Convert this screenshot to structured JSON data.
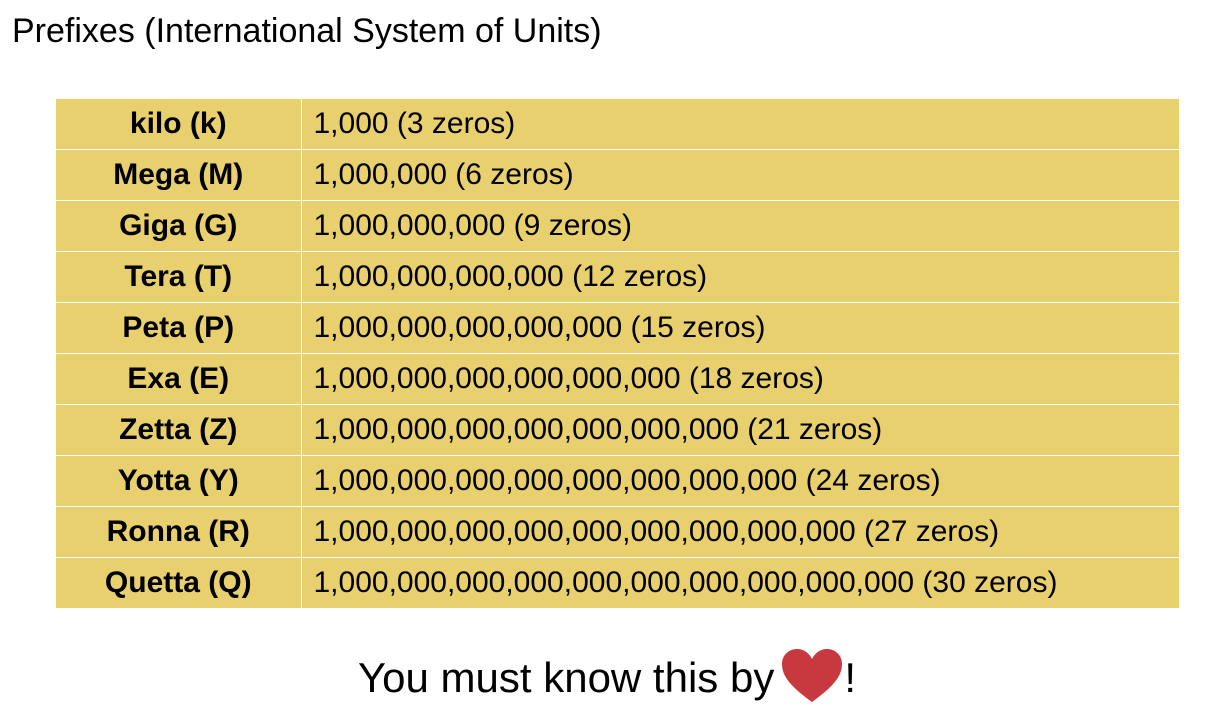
{
  "page": {
    "title": "Prefixes (International System of Units)"
  },
  "table": {
    "rows": [
      {
        "prefix": "kilo (k)",
        "value": "1,000 (3 zeros)"
      },
      {
        "prefix": "Mega (M)",
        "value": "1,000,000 (6 zeros)"
      },
      {
        "prefix": "Giga (G)",
        "value": "1,000,000,000 (9 zeros)"
      },
      {
        "prefix": "Tera (T)",
        "value": "1,000,000,000,000 (12 zeros)"
      },
      {
        "prefix": "Peta (P)",
        "value": "1,000,000,000,000,000 (15 zeros)"
      },
      {
        "prefix": "Exa (E)",
        "value": "1,000,000,000,000,000,000 (18 zeros)"
      },
      {
        "prefix": "Zetta (Z)",
        "value": "1,000,000,000,000,000,000,000 (21 zeros)"
      },
      {
        "prefix": "Yotta (Y)",
        "value": "1,000,000,000,000,000,000,000,000 (24 zeros)"
      },
      {
        "prefix": "Ronna (R)",
        "value": "1,000,000,000,000,000,000,000,000,000 (27 zeros)"
      },
      {
        "prefix": "Quetta (Q)",
        "value": "1,000,000,000,000,000,000,000,000,000,000 (30 zeros)"
      }
    ]
  },
  "footer": {
    "text": "You must know this by",
    "icon": "heart-icon",
    "suffix": "!"
  },
  "colors": {
    "table_background": "#e8d06e",
    "heart": "#c8393f"
  }
}
